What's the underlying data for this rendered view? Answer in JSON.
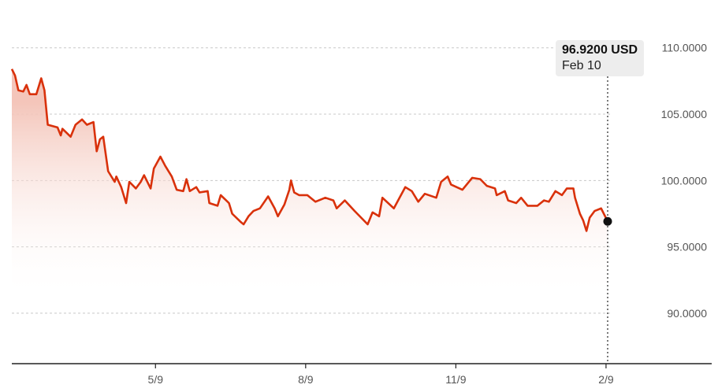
{
  "chart_data": {
    "type": "area",
    "title": "",
    "xlabel": "",
    "ylabel": "",
    "ylim": [
      86.2,
      113.6
    ],
    "grid": true,
    "y_ticks": [
      {
        "value": 110,
        "label": "110.0000"
      },
      {
        "value": 105,
        "label": "105.0000"
      },
      {
        "value": 100,
        "label": "100.0000"
      },
      {
        "value": 95,
        "label": "95.0000"
      },
      {
        "value": 90,
        "label": "90.0000"
      }
    ],
    "x_ticks": [
      {
        "date": "05-09",
        "label": "5/9"
      },
      {
        "date": "08-09",
        "label": "8/9"
      },
      {
        "date": "11-09",
        "label": "11/9"
      },
      {
        "date": "02-09",
        "label": "2/9"
      }
    ],
    "line_color": "#d9310b",
    "fill_color": "#f3c2b6",
    "x": [
      "02-10",
      "02-12",
      "02-14",
      "02-17",
      "02-19",
      "02-21",
      "02-25",
      "02-28",
      "03-02",
      "03-04",
      "03-10",
      "03-12",
      "03-13",
      "03-18",
      "03-21",
      "03-25",
      "03-28",
      "04-01",
      "04-03",
      "04-05",
      "04-07",
      "04-10",
      "04-14",
      "04-15",
      "04-18",
      "04-21",
      "04-23",
      "04-27",
      "04-30",
      "05-02",
      "05-06",
      "05-08",
      "05-12",
      "05-15",
      "05-19",
      "05-22",
      "05-26",
      "05-28",
      "05-30",
      "06-03",
      "06-05",
      "06-10",
      "06-11",
      "06-16",
      "06-18",
      "06-23",
      "06-25",
      "06-30",
      "07-02",
      "07-05",
      "07-08",
      "07-12",
      "07-17",
      "07-21",
      "07-23",
      "07-27",
      "07-30",
      "07-31",
      "08-02",
      "08-05",
      "08-10",
      "08-15",
      "08-21",
      "08-26",
      "08-28",
      "09-02",
      "09-08",
      "09-16",
      "09-19",
      "09-23",
      "09-25",
      "10-02",
      "10-09",
      "10-13",
      "10-17",
      "10-21",
      "10-28",
      "10-31",
      "11-04",
      "11-06",
      "11-13",
      "11-19",
      "11-24",
      "11-28",
      "12-03",
      "12-04",
      "12-09",
      "12-11",
      "12-16",
      "12-19",
      "12-23",
      "12-29",
      "01-02",
      "01-05",
      "01-09",
      "01-13",
      "01-16",
      "01-20",
      "01-21",
      "01-24",
      "01-26",
      "01-28",
      "01-30",
      "02-02",
      "02-06",
      "02-10"
    ],
    "values": [
      108.4,
      107.9,
      106.8,
      106.7,
      107.2,
      106.5,
      106.5,
      107.7,
      106.8,
      104.2,
      104.0,
      103.4,
      103.9,
      103.3,
      104.2,
      104.6,
      104.2,
      104.4,
      102.2,
      103.1,
      103.3,
      100.7,
      99.9,
      100.3,
      99.5,
      98.3,
      99.9,
      99.4,
      99.9,
      100.4,
      99.4,
      100.9,
      101.8,
      101.1,
      100.3,
      99.3,
      99.2,
      100.1,
      99.2,
      99.5,
      99.1,
      99.2,
      98.3,
      98.1,
      98.9,
      98.3,
      97.5,
      96.9,
      96.7,
      97.3,
      97.7,
      97.9,
      98.8,
      97.9,
      97.3,
      98.2,
      99.3,
      100.0,
      99.1,
      98.9,
      98.9,
      98.4,
      98.7,
      98.5,
      97.9,
      98.5,
      97.7,
      96.7,
      97.6,
      97.3,
      98.7,
      97.9,
      99.5,
      99.2,
      98.4,
      99.0,
      98.7,
      99.9,
      100.3,
      99.7,
      99.3,
      100.2,
      100.1,
      99.6,
      99.4,
      98.9,
      99.2,
      98.5,
      98.3,
      98.7,
      98.1,
      98.1,
      98.5,
      98.4,
      99.2,
      98.9,
      99.4,
      99.4,
      98.7,
      97.5,
      97.0,
      96.2,
      97.2,
      97.7,
      97.9,
      96.92
    ],
    "tooltip": {
      "value": "96.9200 USD",
      "date": "Feb 10"
    }
  }
}
